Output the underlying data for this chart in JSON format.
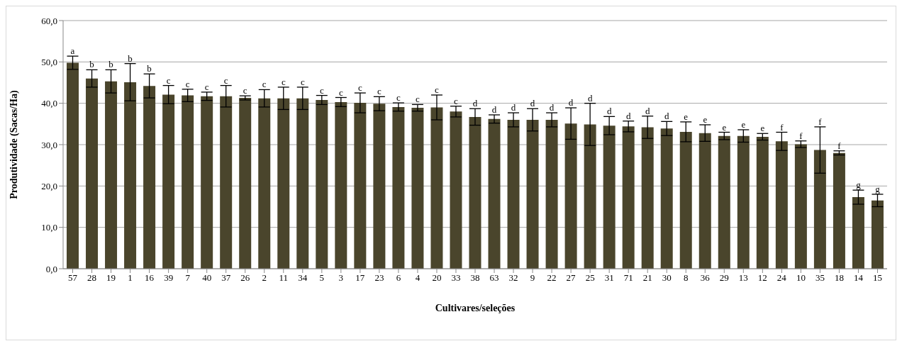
{
  "chart_data": {
    "type": "bar",
    "xlabel": "Cultivares/seleções",
    "ylabel": "Produtividade (Sacas/Ha)",
    "categories": [
      "57",
      "28",
      "19",
      "1",
      "16",
      "39",
      "7",
      "40",
      "37",
      "26",
      "2",
      "11",
      "34",
      "5",
      "3",
      "17",
      "23",
      "6",
      "4",
      "20",
      "33",
      "38",
      "63",
      "32",
      "9",
      "22",
      "27",
      "25",
      "31",
      "71",
      "21",
      "30",
      "8",
      "36",
      "29",
      "13",
      "12",
      "24",
      "10",
      "35",
      "18",
      "14",
      "15"
    ],
    "values": [
      49.8,
      46.0,
      45.3,
      45.1,
      44.2,
      42.1,
      41.9,
      41.7,
      41.7,
      41.3,
      41.2,
      41.2,
      41.2,
      40.8,
      40.3,
      40.1,
      39.9,
      39.1,
      38.9,
      39.0,
      38.0,
      36.7,
      36.2,
      36.0,
      36.0,
      36.0,
      35.1,
      34.9,
      34.6,
      34.4,
      34.2,
      33.9,
      33.1,
      32.8,
      32.1,
      32.1,
      31.9,
      30.8,
      30.1,
      28.7,
      28.0,
      17.3,
      16.5
    ],
    "errors": [
      1.6,
      2.1,
      2.8,
      4.5,
      2.9,
      2.2,
      1.5,
      1.0,
      2.6,
      0.5,
      2.1,
      2.7,
      2.7,
      1.1,
      1.1,
      2.4,
      1.7,
      1.0,
      0.8,
      3.0,
      1.3,
      2.0,
      1.0,
      1.7,
      2.7,
      1.7,
      3.8,
      5.1,
      2.2,
      1.3,
      2.7,
      1.7,
      2.4,
      2.0,
      0.9,
      1.5,
      0.8,
      2.2,
      0.8,
      5.6,
      0.5,
      1.7,
      1.5
    ],
    "color": "#4a452c",
    "ylim": [
      0,
      60
    ],
    "yticks": [
      {
        "value": 0,
        "label": "0,0"
      },
      {
        "value": 10,
        "label": "10,0"
      },
      {
        "value": 20,
        "label": "20,0"
      },
      {
        "value": 30,
        "label": "30,0"
      },
      {
        "value": 40,
        "label": "40,0"
      },
      {
        "value": 50,
        "label": "50,0"
      },
      {
        "value": 60,
        "label": "60,0"
      }
    ],
    "grid": "y",
    "annotations": [
      {
        "text": "a",
        "x": "57",
        "y": 51.4
      },
      {
        "text": "b",
        "x": "28",
        "y": 48.1
      },
      {
        "text": "b",
        "x": "19",
        "y": 48.1
      },
      {
        "text": "b",
        "x": "1",
        "y": 49.6
      },
      {
        "text": "b",
        "x": "16",
        "y": 47.1
      },
      {
        "text": "c",
        "x": "39",
        "y": 44.3
      },
      {
        "text": "c",
        "x": "7",
        "y": 43.4
      },
      {
        "text": "c",
        "x": "40",
        "y": 42.7
      },
      {
        "text": "c",
        "x": "37",
        "y": 44.3
      },
      {
        "text": "c",
        "x": "26",
        "y": 41.8
      },
      {
        "text": "c",
        "x": "2",
        "y": 43.3
      },
      {
        "text": "c",
        "x": "11",
        "y": 43.9
      },
      {
        "text": "c",
        "x": "34",
        "y": 43.9
      },
      {
        "text": "c",
        "x": "5",
        "y": 41.9
      },
      {
        "text": "c",
        "x": "3",
        "y": 41.4
      },
      {
        "text": "c",
        "x": "17",
        "y": 42.5
      },
      {
        "text": "c",
        "x": "23",
        "y": 41.6
      },
      {
        "text": "c",
        "x": "6",
        "y": 40.1
      },
      {
        "text": "c",
        "x": "4",
        "y": 39.7
      },
      {
        "text": "c",
        "x": "20",
        "y": 42.0
      },
      {
        "text": "c",
        "x": "33",
        "y": 39.3
      },
      {
        "text": "d",
        "x": "38",
        "y": 38.7
      },
      {
        "text": "d",
        "x": "63",
        "y": 37.2
      },
      {
        "text": "d",
        "x": "32",
        "y": 37.7
      },
      {
        "text": "d",
        "x": "9",
        "y": 38.7
      },
      {
        "text": "d",
        "x": "22",
        "y": 37.7
      },
      {
        "text": "d",
        "x": "27",
        "y": 38.9
      },
      {
        "text": "d",
        "x": "25",
        "y": 40.0
      },
      {
        "text": "d",
        "x": "31",
        "y": 36.8
      },
      {
        "text": "d",
        "x": "71",
        "y": 35.7
      },
      {
        "text": "d",
        "x": "21",
        "y": 36.9
      },
      {
        "text": "d",
        "x": "30",
        "y": 35.6
      },
      {
        "text": "e",
        "x": "8",
        "y": 35.5
      },
      {
        "text": "e",
        "x": "36",
        "y": 34.8
      },
      {
        "text": "e",
        "x": "29",
        "y": 33.0
      },
      {
        "text": "e",
        "x": "13",
        "y": 33.6
      },
      {
        "text": "e",
        "x": "12",
        "y": 32.7
      },
      {
        "text": "f",
        "x": "24",
        "y": 33.0
      },
      {
        "text": "f",
        "x": "10",
        "y": 30.9
      },
      {
        "text": "f",
        "x": "35",
        "y": 34.3
      },
      {
        "text": "f",
        "x": "18",
        "y": 28.5
      },
      {
        "text": "g",
        "x": "14",
        "y": 19.0
      },
      {
        "text": "g",
        "x": "15",
        "y": 18.0
      }
    ]
  }
}
